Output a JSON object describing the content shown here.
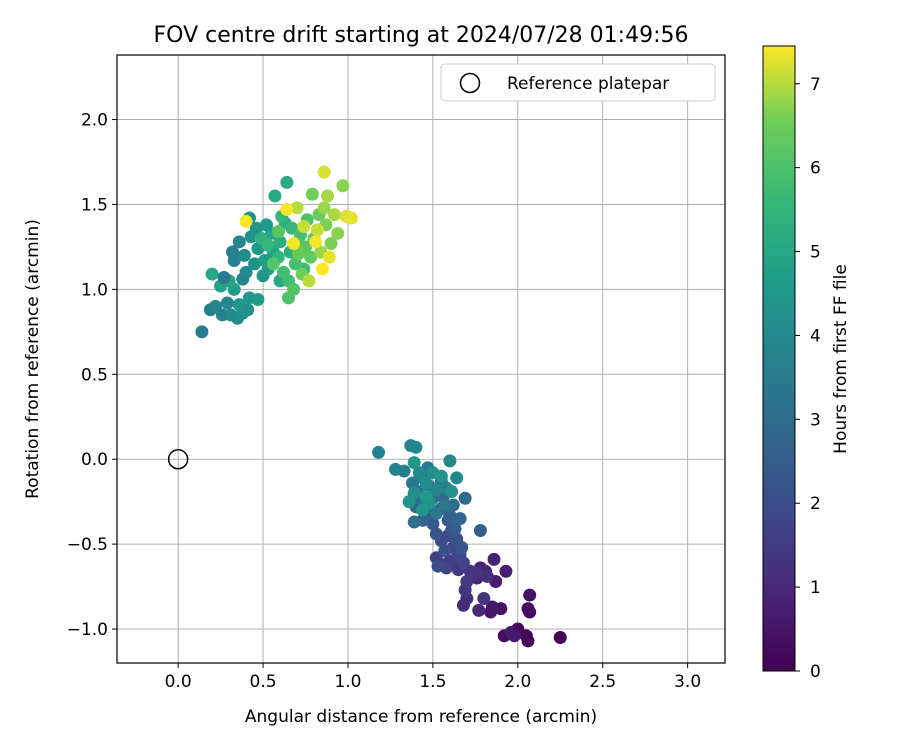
{
  "chart_data": {
    "type": "scatter",
    "title": "FOV centre drift starting at 2024/07/28 01:49:56",
    "xlabel": "Angular distance from reference (arcmin)",
    "ylabel": "Rotation from reference (arcmin)",
    "xlim": [
      -0.36,
      3.22
    ],
    "ylim": [
      -1.2,
      2.38
    ],
    "xticks": [
      "0.0",
      "0.5",
      "1.0",
      "1.5",
      "2.0",
      "2.5",
      "3.0"
    ],
    "yticks": [
      "−1.0",
      "−0.5",
      "0.0",
      "0.5",
      "1.0",
      "1.5",
      "2.0"
    ],
    "grid": true,
    "legend": {
      "placement": "top-right",
      "entries": [
        "Reference platepar"
      ]
    },
    "colorbar": {
      "label": "Hours from first FF file",
      "range": [
        0,
        7.45
      ],
      "ticks": [
        "0",
        "1",
        "2",
        "3",
        "4",
        "5",
        "6",
        "7"
      ],
      "colormap": "viridis"
    },
    "reference_point": {
      "x": 0.0,
      "y": 0.0
    },
    "series": [
      {
        "points": [
          [
            2.25,
            -1.05,
            0.05
          ],
          [
            2.06,
            -1.07,
            0.1
          ],
          [
            2.05,
            -1.04,
            0.15
          ],
          [
            2.0,
            -1.0,
            0.2
          ],
          [
            1.92,
            -1.04,
            0.25
          ],
          [
            2.07,
            -0.9,
            0.3
          ],
          [
            2.06,
            -0.88,
            0.35
          ],
          [
            2.07,
            -0.8,
            0.4
          ],
          [
            1.9,
            -0.88,
            0.45
          ],
          [
            1.84,
            -0.9,
            0.5
          ],
          [
            1.85,
            -0.87,
            0.55
          ],
          [
            1.96,
            -1.02,
            0.6
          ],
          [
            1.98,
            -1.04,
            0.65
          ],
          [
            1.87,
            -0.72,
            0.7
          ],
          [
            1.93,
            -0.66,
            0.75
          ],
          [
            1.86,
            -0.59,
            0.8
          ],
          [
            1.78,
            -0.64,
            0.85
          ],
          [
            1.81,
            -0.66,
            0.9
          ],
          [
            1.76,
            -0.7,
            0.95
          ],
          [
            1.77,
            -0.89,
            1.0
          ],
          [
            1.68,
            -0.86,
            1.05
          ],
          [
            1.7,
            -0.82,
            1.1
          ],
          [
            1.82,
            -0.69,
            1.15
          ],
          [
            1.72,
            -0.66,
            1.2
          ],
          [
            1.8,
            -0.82,
            1.25
          ],
          [
            1.69,
            -0.77,
            1.3
          ],
          [
            1.75,
            -0.67,
            1.35
          ],
          [
            1.7,
            -0.72,
            1.4
          ],
          [
            1.65,
            -0.65,
            1.45
          ],
          [
            1.6,
            -0.6,
            1.5
          ],
          [
            1.55,
            -0.62,
            1.55
          ],
          [
            1.64,
            -0.58,
            1.6
          ],
          [
            1.52,
            -0.58,
            1.65
          ],
          [
            1.68,
            -0.61,
            1.7
          ],
          [
            1.58,
            -0.64,
            1.75
          ],
          [
            1.62,
            -0.52,
            1.8
          ],
          [
            1.55,
            -0.48,
            1.85
          ],
          [
            1.66,
            -0.56,
            1.9
          ],
          [
            1.59,
            -0.45,
            1.95
          ],
          [
            1.53,
            -0.63,
            2.0
          ],
          [
            1.64,
            -0.47,
            2.05
          ],
          [
            1.57,
            -0.54,
            2.1
          ],
          [
            1.61,
            -0.42,
            2.15
          ],
          [
            1.52,
            -0.44,
            2.2
          ],
          [
            1.67,
            -0.52,
            2.25
          ],
          [
            1.5,
            -0.38,
            2.3
          ],
          [
            1.59,
            -0.36,
            2.35
          ],
          [
            1.47,
            -0.33,
            2.4
          ],
          [
            1.63,
            -0.41,
            2.45
          ],
          [
            1.78,
            -0.42,
            2.5
          ],
          [
            1.55,
            -0.29,
            2.55
          ],
          [
            1.44,
            -0.36,
            2.6
          ],
          [
            1.6,
            -0.33,
            2.65
          ],
          [
            1.66,
            -0.35,
            2.7
          ],
          [
            1.56,
            -0.22,
            2.75
          ],
          [
            1.42,
            -0.24,
            2.8
          ],
          [
            1.69,
            -0.23,
            2.85
          ],
          [
            1.62,
            -0.27,
            2.9
          ],
          [
            1.4,
            -0.28,
            2.95
          ],
          [
            1.48,
            -0.16,
            3.0
          ],
          [
            1.39,
            -0.37,
            3.05
          ],
          [
            1.55,
            -0.13,
            3.1
          ],
          [
            1.45,
            -0.27,
            3.15
          ],
          [
            1.5,
            -0.23,
            3.2
          ],
          [
            1.57,
            -0.27,
            3.25
          ],
          [
            1.41,
            -0.19,
            3.3
          ],
          [
            1.52,
            -0.32,
            3.35
          ],
          [
            1.38,
            -0.14,
            3.4
          ],
          [
            1.47,
            -0.05,
            3.45
          ],
          [
            1.44,
            -0.11,
            3.5
          ],
          [
            1.58,
            -0.17,
            3.55
          ],
          [
            1.33,
            -0.07,
            3.6
          ],
          [
            1.28,
            -0.06,
            3.65
          ],
          [
            1.18,
            0.04,
            3.7
          ],
          [
            1.37,
            0.08,
            3.75
          ],
          [
            1.4,
            0.07,
            3.8
          ],
          [
            1.52,
            -0.18,
            3.85
          ],
          [
            1.6,
            -0.01,
            3.9
          ],
          [
            1.64,
            -0.11,
            3.95
          ],
          [
            1.42,
            -0.08,
            4.0
          ],
          [
            1.39,
            -0.2,
            4.05
          ],
          [
            1.46,
            -0.14,
            4.1
          ],
          [
            1.5,
            -0.08,
            4.15
          ],
          [
            1.36,
            -0.25,
            4.2
          ],
          [
            1.61,
            -0.19,
            4.25
          ],
          [
            1.48,
            -0.26,
            4.3
          ],
          [
            1.55,
            -0.1,
            4.35
          ],
          [
            1.44,
            -0.3,
            4.4
          ],
          [
            1.39,
            -0.02,
            4.45
          ],
          [
            1.46,
            -0.22,
            4.5
          ],
          [
            0.14,
            0.75,
            3.5
          ],
          [
            0.19,
            0.88,
            3.6
          ],
          [
            0.26,
            0.85,
            3.7
          ],
          [
            0.22,
            0.9,
            3.8
          ],
          [
            0.29,
            0.92,
            3.9
          ],
          [
            0.31,
            0.85,
            4.0
          ],
          [
            0.35,
            0.83,
            4.1
          ],
          [
            0.38,
            0.86,
            4.2
          ],
          [
            0.41,
            0.88,
            4.3
          ],
          [
            0.36,
            0.91,
            4.4
          ],
          [
            0.42,
            0.95,
            4.5
          ],
          [
            0.47,
            0.94,
            4.6
          ],
          [
            0.33,
            1.0,
            4.7
          ],
          [
            0.25,
            1.02,
            4.8
          ],
          [
            0.3,
            1.05,
            4.9
          ],
          [
            0.2,
            1.09,
            5.0
          ],
          [
            0.27,
            1.07,
            3.4
          ],
          [
            0.33,
            1.17,
            3.6
          ],
          [
            0.38,
            1.06,
            3.8
          ],
          [
            0.4,
            1.1,
            4.0
          ],
          [
            0.45,
            1.15,
            4.2
          ],
          [
            0.5,
            1.08,
            4.4
          ],
          [
            0.53,
            1.12,
            4.6
          ],
          [
            0.56,
            1.22,
            4.8
          ],
          [
            0.6,
            1.05,
            5.0
          ],
          [
            0.32,
            1.22,
            3.7
          ],
          [
            0.36,
            1.28,
            3.9
          ],
          [
            0.39,
            1.2,
            4.1
          ],
          [
            0.43,
            1.31,
            4.3
          ],
          [
            0.47,
            1.24,
            4.5
          ],
          [
            0.51,
            1.17,
            4.7
          ],
          [
            0.55,
            1.33,
            4.9
          ],
          [
            0.42,
            1.42,
            4.2
          ],
          [
            0.46,
            1.36,
            4.4
          ],
          [
            0.52,
            1.38,
            4.6
          ],
          [
            0.57,
            1.55,
            5.1
          ],
          [
            0.64,
            1.63,
            5.2
          ],
          [
            0.6,
            1.28,
            5.2
          ],
          [
            0.63,
            1.39,
            5.3
          ],
          [
            0.66,
            1.22,
            5.3
          ],
          [
            0.49,
            1.3,
            5.4
          ],
          [
            0.53,
            1.26,
            5.5
          ],
          [
            0.59,
            1.19,
            5.5
          ],
          [
            0.61,
            1.43,
            5.6
          ],
          [
            0.67,
            1.36,
            5.6
          ],
          [
            0.7,
            1.26,
            5.7
          ],
          [
            0.74,
            1.12,
            5.7
          ],
          [
            0.65,
            1.05,
            5.8
          ],
          [
            0.62,
            1.1,
            5.8
          ],
          [
            0.69,
            1.15,
            5.9
          ],
          [
            0.72,
            1.32,
            5.9
          ],
          [
            0.76,
            1.41,
            6.0
          ],
          [
            0.65,
            0.95,
            6.0
          ],
          [
            0.68,
            1.0,
            6.1
          ],
          [
            0.56,
            1.15,
            6.1
          ],
          [
            0.59,
            1.34,
            6.2
          ],
          [
            0.75,
            1.25,
            6.2
          ],
          [
            0.78,
            1.19,
            6.3
          ],
          [
            0.8,
            1.3,
            6.3
          ],
          [
            0.83,
            1.44,
            6.4
          ],
          [
            0.71,
            1.21,
            6.4
          ],
          [
            0.73,
            1.09,
            6.5
          ],
          [
            0.79,
            1.56,
            6.5
          ],
          [
            0.87,
            1.38,
            6.6
          ],
          [
            0.9,
            1.27,
            6.6
          ],
          [
            0.94,
            1.33,
            6.7
          ],
          [
            0.97,
            1.61,
            6.7
          ],
          [
            0.84,
            1.22,
            6.8
          ],
          [
            0.86,
            1.48,
            6.8
          ],
          [
            0.88,
            1.55,
            6.9
          ],
          [
            0.92,
            1.44,
            6.9
          ],
          [
            0.77,
            1.05,
            7.0
          ],
          [
            0.7,
            1.48,
            7.0
          ],
          [
            0.74,
            1.37,
            7.1
          ],
          [
            0.82,
            1.35,
            7.1
          ],
          [
            0.86,
            1.69,
            7.2
          ],
          [
            0.99,
            1.43,
            7.2
          ],
          [
            1.02,
            1.42,
            7.3
          ],
          [
            0.89,
            1.19,
            7.3
          ],
          [
            0.68,
            1.27,
            7.4
          ],
          [
            0.4,
            1.4,
            7.4
          ],
          [
            0.64,
            1.47,
            7.4
          ],
          [
            0.81,
            1.28,
            7.4
          ],
          [
            0.85,
            1.12,
            7.45
          ]
        ]
      }
    ]
  }
}
